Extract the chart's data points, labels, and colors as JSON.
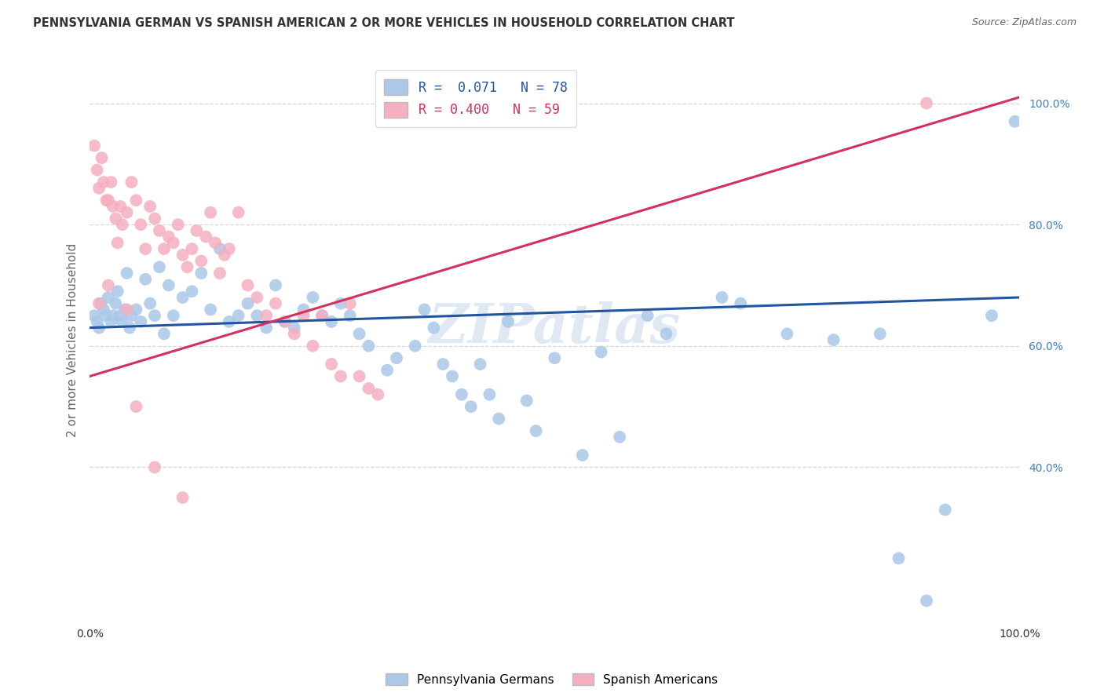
{
  "title": "PENNSYLVANIA GERMAN VS SPANISH AMERICAN 2 OR MORE VEHICLES IN HOUSEHOLD CORRELATION CHART",
  "source": "Source: ZipAtlas.com",
  "ylabel": "2 or more Vehicles in Household",
  "legend_blue_r": "R =  0.071",
  "legend_blue_n": "N = 78",
  "legend_pink_r": "R = 0.400",
  "legend_pink_n": "N = 59",
  "watermark": "ZIPatlas",
  "blue_scatter_x": [
    0.5,
    0.8,
    1.0,
    1.2,
    1.5,
    1.7,
    2.0,
    2.3,
    2.5,
    2.8,
    3.0,
    3.3,
    3.5,
    3.8,
    4.0,
    4.3,
    4.5,
    5.0,
    5.5,
    6.0,
    6.5,
    7.0,
    7.5,
    8.0,
    8.5,
    9.0,
    10.0,
    11.0,
    12.0,
    13.0,
    14.0,
    15.0,
    16.0,
    17.0,
    18.0,
    19.0,
    20.0,
    21.0,
    22.0,
    23.0,
    24.0,
    25.0,
    26.0,
    27.0,
    28.0,
    29.0,
    30.0,
    32.0,
    33.0,
    35.0,
    36.0,
    37.0,
    38.0,
    39.0,
    40.0,
    41.0,
    42.0,
    43.0,
    44.0,
    45.0,
    47.0,
    48.0,
    50.0,
    53.0,
    55.0,
    57.0,
    60.0,
    62.0,
    68.0,
    70.0,
    75.0,
    80.0,
    85.0,
    87.0,
    90.0,
    92.0,
    97.0,
    99.5
  ],
  "blue_scatter_y": [
    65.0,
    64.0,
    63.0,
    67.0,
    66.0,
    65.0,
    68.0,
    64.0,
    65.0,
    67.0,
    69.0,
    65.0,
    64.0,
    66.0,
    72.0,
    63.0,
    65.0,
    66.0,
    64.0,
    71.0,
    67.0,
    65.0,
    73.0,
    62.0,
    70.0,
    65.0,
    68.0,
    69.0,
    72.0,
    66.0,
    76.0,
    64.0,
    65.0,
    67.0,
    65.0,
    63.0,
    70.0,
    64.0,
    63.0,
    66.0,
    68.0,
    65.0,
    64.0,
    67.0,
    65.0,
    62.0,
    60.0,
    56.0,
    58.0,
    60.0,
    66.0,
    63.0,
    57.0,
    55.0,
    52.0,
    50.0,
    57.0,
    52.0,
    48.0,
    64.0,
    51.0,
    46.0,
    58.0,
    42.0,
    59.0,
    45.0,
    65.0,
    62.0,
    68.0,
    67.0,
    62.0,
    61.0,
    62.0,
    25.0,
    18.0,
    33.0,
    65.0,
    97.0
  ],
  "pink_scatter_x": [
    0.5,
    0.8,
    1.0,
    1.3,
    1.5,
    1.8,
    2.0,
    2.3,
    2.5,
    2.8,
    3.0,
    3.3,
    3.5,
    4.0,
    4.5,
    5.0,
    5.5,
    6.0,
    6.5,
    7.0,
    7.5,
    8.0,
    8.5,
    9.0,
    9.5,
    10.0,
    10.5,
    11.0,
    11.5,
    12.0,
    12.5,
    13.0,
    13.5,
    14.0,
    14.5,
    15.0,
    16.0,
    17.0,
    18.0,
    19.0,
    20.0,
    21.0,
    22.0,
    23.0,
    24.0,
    25.0,
    26.0,
    27.0,
    28.0,
    29.0,
    30.0,
    31.0,
    4.0,
    2.0,
    1.0,
    5.0,
    7.0,
    10.0,
    90.0
  ],
  "pink_scatter_y": [
    93.0,
    89.0,
    86.0,
    91.0,
    87.0,
    84.0,
    84.0,
    87.0,
    83.0,
    81.0,
    77.0,
    83.0,
    80.0,
    82.0,
    87.0,
    84.0,
    80.0,
    76.0,
    83.0,
    81.0,
    79.0,
    76.0,
    78.0,
    77.0,
    80.0,
    75.0,
    73.0,
    76.0,
    79.0,
    74.0,
    78.0,
    82.0,
    77.0,
    72.0,
    75.0,
    76.0,
    82.0,
    70.0,
    68.0,
    65.0,
    67.0,
    64.0,
    62.0,
    65.0,
    60.0,
    65.0,
    57.0,
    55.0,
    67.0,
    55.0,
    53.0,
    52.0,
    66.0,
    70.0,
    67.0,
    50.0,
    40.0,
    35.0,
    100.0
  ],
  "blue_line_x": [
    0,
    100
  ],
  "blue_line_y": [
    63.0,
    68.0
  ],
  "pink_line_x": [
    0,
    100
  ],
  "pink_line_y": [
    55.0,
    101.0
  ],
  "blue_dot_color": "#aac8e8",
  "pink_dot_color": "#f5b0c0",
  "blue_line_color": "#2255a0",
  "pink_line_color": "#d43060",
  "bg_color": "#ffffff",
  "grid_color": "#cccccc",
  "title_color": "#333333",
  "watermark_color": "#c8d8ea",
  "right_axis_color": "#4080c0",
  "ytick_positions": [
    40,
    60,
    80,
    100
  ],
  "ytick_labels": [
    "40.0%",
    "60.0%",
    "80.0%",
    "100.0%"
  ],
  "xlim": [
    0,
    100
  ],
  "ylim": [
    15,
    107
  ]
}
